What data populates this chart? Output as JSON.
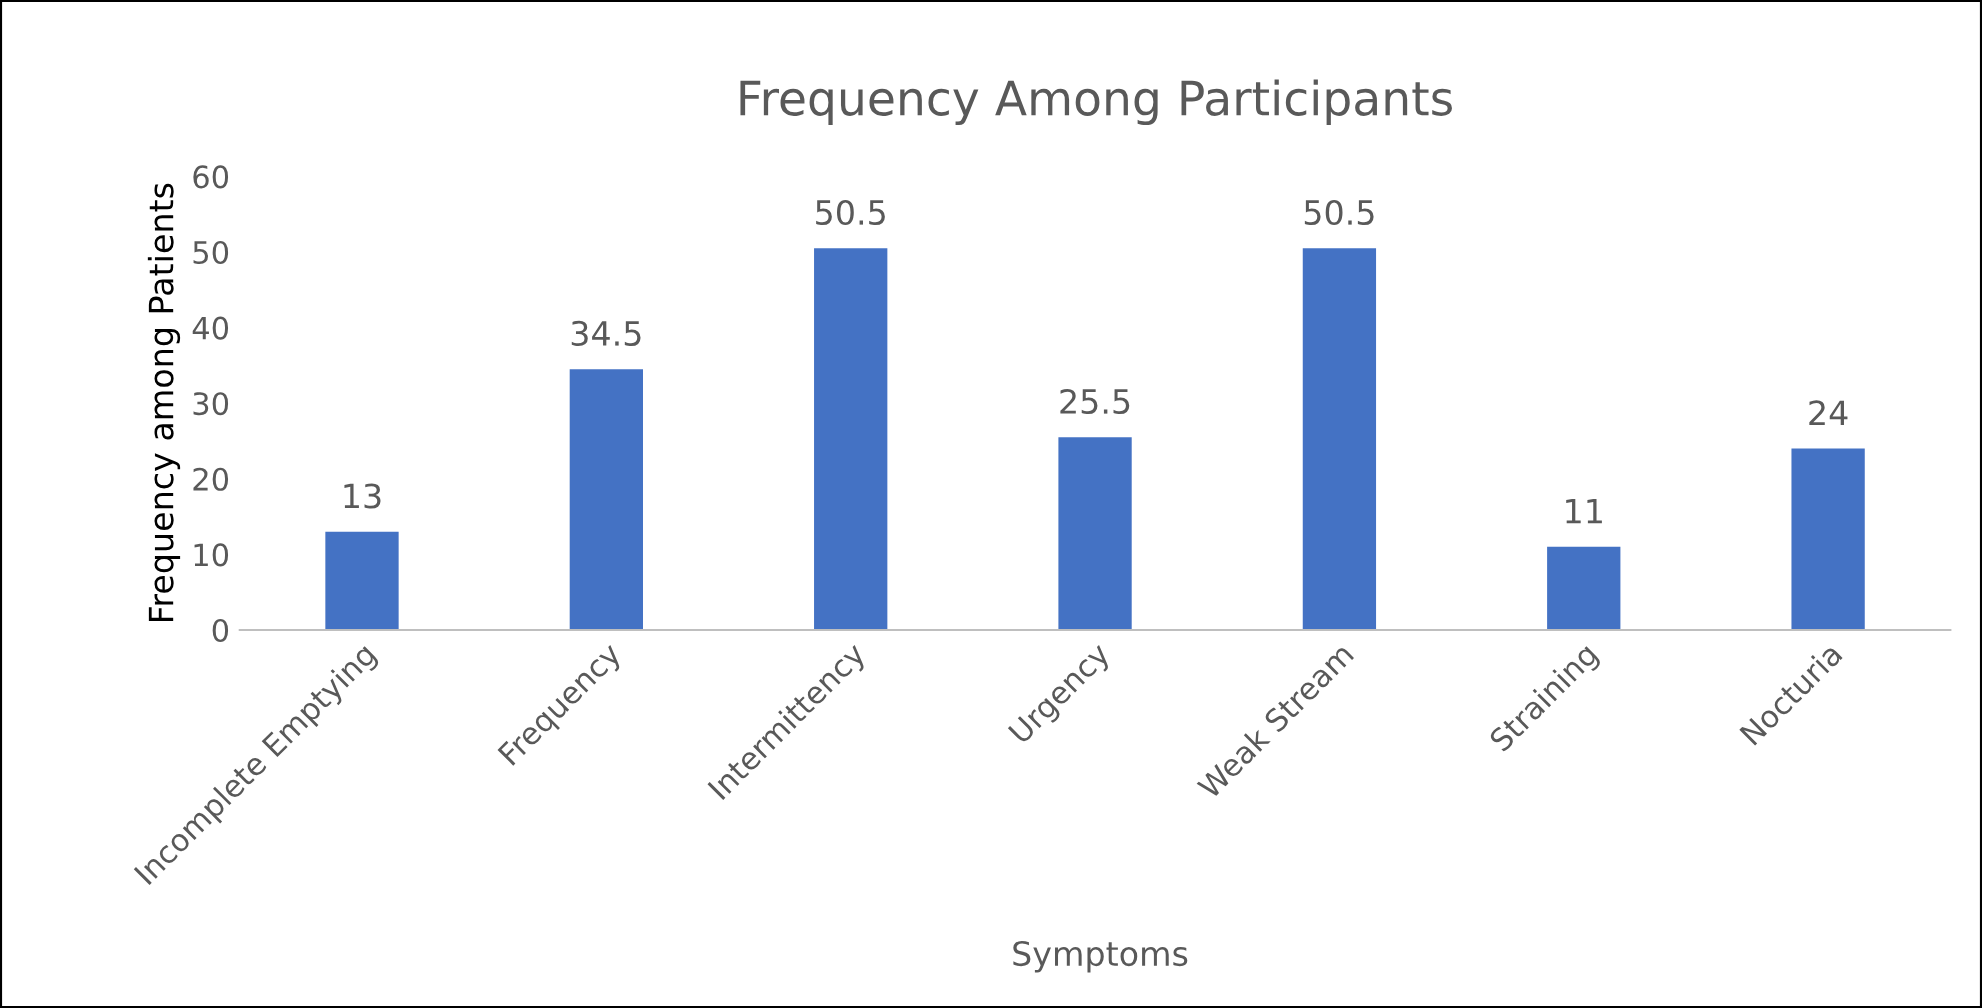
{
  "chart_data": {
    "type": "bar",
    "title": "Frequency Among Participants",
    "xlabel": "Symptoms",
    "ylabel": "Frequency among Patients",
    "categories": [
      "Incomplete Emptying",
      "Frequency",
      "Intermittency",
      "Urgency",
      "Weak Stream",
      "Straining",
      "Nocturia"
    ],
    "values": [
      13,
      34.5,
      50.5,
      25.5,
      50.5,
      11,
      24
    ],
    "color": "#4472c4",
    "ylim": [
      0,
      60
    ],
    "yticks": [
      0,
      10,
      20,
      30,
      40,
      50,
      60
    ],
    "grid": false,
    "data_labels": true
  }
}
